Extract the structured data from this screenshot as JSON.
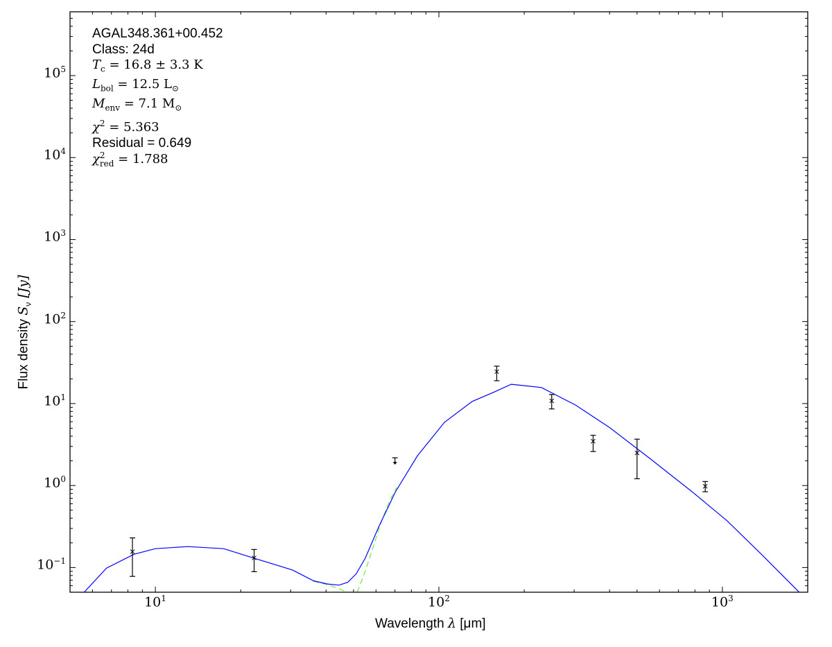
{
  "chart_data": {
    "type": "scatter",
    "xlabel": "Wavelength λ [μm]",
    "xlabel_parts": {
      "text": "Wavelength ",
      "sym": "λ",
      "unit": " [μm]"
    },
    "ylabel_parts": {
      "text": "Flux density ",
      "sym": "S",
      "sub": "ν",
      "unit": " [Jy]"
    },
    "xscale": "log",
    "yscale": "log",
    "xlim": [
      5,
      2000
    ],
    "ylim": [
      0.05,
      600000
    ],
    "grid": false,
    "x_ticks": [
      {
        "base": "10",
        "exp": "1",
        "value": 10
      },
      {
        "base": "10",
        "exp": "2",
        "value": 100
      },
      {
        "base": "10",
        "exp": "3",
        "value": 1000
      }
    ],
    "y_ticks": [
      {
        "base": "10",
        "exp": "−1",
        "value": 0.1
      },
      {
        "base": "10",
        "exp": "0",
        "value": 1
      },
      {
        "base": "10",
        "exp": "1",
        "value": 10
      },
      {
        "base": "10",
        "exp": "2",
        "value": 100
      },
      {
        "base": "10",
        "exp": "3",
        "value": 1000
      },
      {
        "base": "10",
        "exp": "4",
        "value": 10000
      },
      {
        "base": "10",
        "exp": "5",
        "value": 100000
      }
    ],
    "annotations": {
      "source": "AGAL348.361+00.452",
      "class": "Class: 24d",
      "tc": {
        "sym": "T",
        "sub": "c",
        "rest": " = 16.8 ± 3.3 K"
      },
      "lbol": {
        "sym": "L",
        "sub": "bol",
        "rest": " = 12.5 L",
        "rest_sub": "⊙"
      },
      "menv": {
        "sym": "M",
        "sub": "env",
        "rest": " = 7.1 M",
        "rest_sub": "⊙"
      },
      "chi2": {
        "sym": "χ",
        "sup": "2",
        "rest": " = 5.363"
      },
      "residual": "Residual = 0.649",
      "chi2red": {
        "sym": "χ",
        "sup": "2",
        "sub": "red",
        "rest": " = 1.788"
      }
    },
    "points": [
      {
        "x": 8.3,
        "y": 0.156,
        "lo": 0.078,
        "hi": 0.23
      },
      {
        "x": 22.3,
        "y": 0.131,
        "lo": 0.089,
        "hi": 0.166
      },
      {
        "x": 70,
        "y": 1.94,
        "upper_limit": true
      },
      {
        "x": 160,
        "y": 24.5,
        "lo": 19,
        "hi": 28.6
      },
      {
        "x": 250,
        "y": 10.8,
        "lo": 8.6,
        "hi": 12.9
      },
      {
        "x": 350,
        "y": 3.47,
        "lo": 2.6,
        "hi": 4.1
      },
      {
        "x": 500,
        "y": 2.5,
        "lo": 1.21,
        "hi": 3.68
      },
      {
        "x": 870,
        "y": 0.98,
        "lo": 0.84,
        "hi": 1.12
      }
    ],
    "total_model": [
      [
        5.61,
        0.05
      ],
      [
        6.72,
        0.098
      ],
      [
        8.4,
        0.145
      ],
      [
        10,
        0.17
      ],
      [
        13,
        0.18
      ],
      [
        17.4,
        0.17
      ],
      [
        22.3,
        0.13
      ],
      [
        30.5,
        0.093
      ],
      [
        36.1,
        0.069
      ],
      [
        40.4,
        0.063
      ],
      [
        44.4,
        0.061
      ],
      [
        47.7,
        0.066
      ],
      [
        51.1,
        0.084
      ],
      [
        55,
        0.13
      ],
      [
        61.5,
        0.32
      ],
      [
        70.3,
        0.84
      ],
      [
        84,
        2.3
      ],
      [
        104.6,
        5.9
      ],
      [
        131,
        10.6
      ],
      [
        155,
        13.6
      ],
      [
        180,
        17.2
      ],
      [
        230,
        15.7
      ],
      [
        303,
        9.6
      ],
      [
        400,
        5.1
      ],
      [
        559,
        2.1
      ],
      [
        782,
        0.84
      ],
      [
        1040,
        0.37
      ],
      [
        1373,
        0.145
      ],
      [
        1815,
        0.055
      ],
      [
        1900,
        0.047
      ]
    ],
    "warm_component": [
      [
        36,
        0.068
      ],
      [
        40.4,
        0.062
      ],
      [
        44,
        0.056
      ],
      [
        47.5,
        0.05
      ]
    ],
    "cold_component": [
      [
        51.5,
        0.05
      ],
      [
        55,
        0.09
      ],
      [
        59,
        0.19
      ],
      [
        63,
        0.38
      ],
      [
        67,
        0.65
      ],
      [
        71,
        0.95
      ]
    ],
    "colors": {
      "total_model": "#0000ff",
      "components": "#66ee33",
      "points": "#000000"
    }
  }
}
